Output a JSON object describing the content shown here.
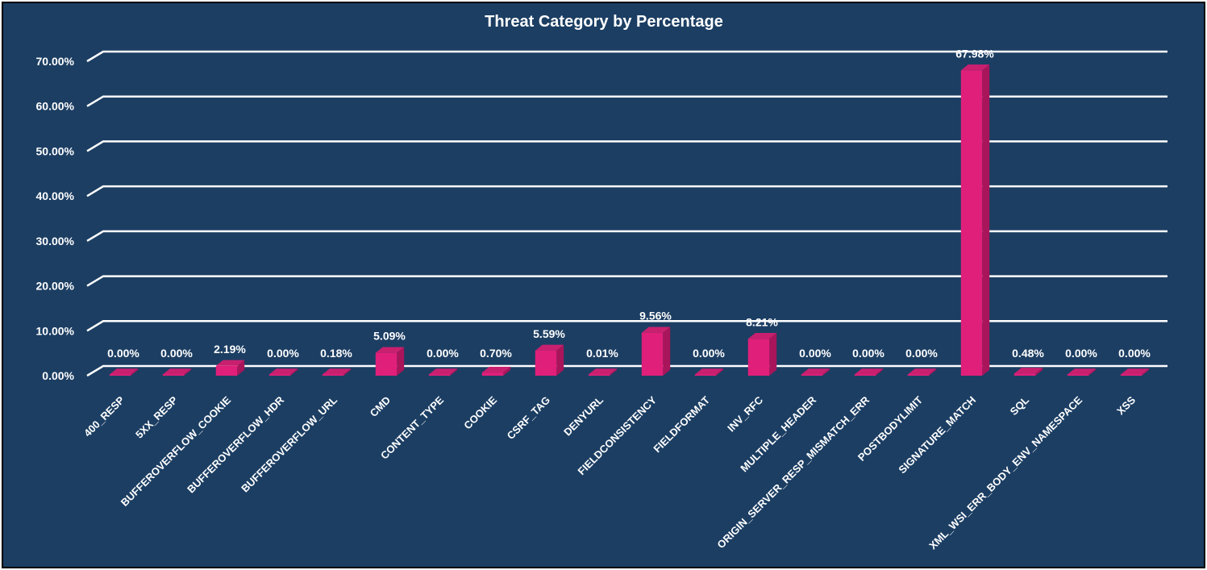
{
  "chart_data": {
    "type": "bar",
    "title": "Threat Category by Percentage",
    "xlabel": "",
    "ylabel": "",
    "ylim": [
      0,
      70
    ],
    "yticks": [
      "0.00%",
      "10.00%",
      "20.00%",
      "30.00%",
      "40.00%",
      "50.00%",
      "60.00%",
      "70.00%"
    ],
    "grid": true,
    "legend": "none",
    "categories": [
      "400_RESP",
      "5XX_RESP",
      "BUFFEROVERFLOW_COOKIE",
      "BUFFEROVERFLOW_HDR",
      "BUFFEROVERFLOW_URL",
      "CMD",
      "CONTENT_TYPE",
      "COOKIE",
      "CSRF_TAG",
      "DENYURL",
      "FIELDCONSISTENCY",
      "FIELDFORMAT",
      "INV_RFC",
      "MULTIPLE_HEADER",
      "ORIGIN_SERVER_RESP_MISMATCH_ERR",
      "POSTBODYLIMIT",
      "SIGNATURE_MATCH",
      "SQL",
      "XML_WSI_ERR_BODY_ENV_NAMESPACE",
      "XSS"
    ],
    "values": [
      0.0,
      0.0,
      2.19,
      0.0,
      0.18,
      5.09,
      0.0,
      0.7,
      5.59,
      0.01,
      9.56,
      0.0,
      8.21,
      0.0,
      0.0,
      0.0,
      67.98,
      0.48,
      0.0,
      0.0
    ],
    "data_labels": [
      "0.00%",
      "0.00%",
      "2.19%",
      "0.00%",
      "0.18%",
      "5.09%",
      "0.00%",
      "0.70%",
      "5.59%",
      "0.01%",
      "9.56%",
      "0.00%",
      "8.21%",
      "0.00%",
      "0.00%",
      "0.00%",
      "67.98%",
      "0.48%",
      "0.00%",
      "0.00%"
    ],
    "colors": {
      "background": "#1c3e63",
      "bar_front": "#e01f7a",
      "bar_side": "#a8155a",
      "bar_top": "#c8206f",
      "grid": "#ffffff",
      "text": "#ffffff"
    }
  }
}
